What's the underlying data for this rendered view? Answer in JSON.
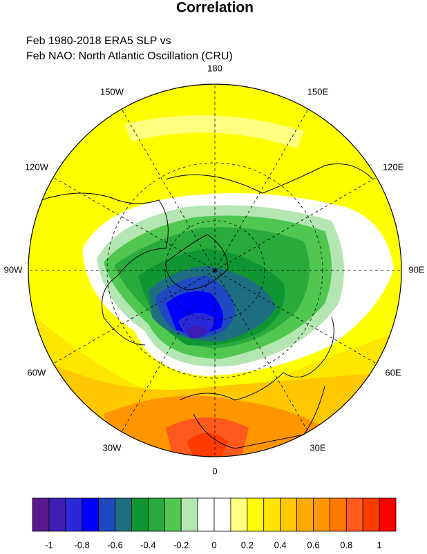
{
  "header": {
    "title": "Correlation",
    "subtitle": [
      "Feb 1980-2018 ERA5 SLP vs",
      "Feb NAO: North Atlantic Oscillation (CRU)"
    ]
  },
  "map": {
    "lon_labels": [
      "180",
      "150E",
      "120E",
      "90E",
      "60E",
      "30E",
      "0",
      "30W",
      "60W",
      "90W",
      "120W",
      "150W"
    ]
  },
  "colorbar": {
    "colors": [
      "#5a1a8c",
      "#3c1eb4",
      "#2a28d8",
      "#0000ff",
      "#2048c0",
      "#1e6e82",
      "#0f9632",
      "#28aa3c",
      "#50c850",
      "#b4e6b4",
      "#ffffff",
      "#ffffff",
      "#ffff80",
      "#ffff00",
      "#ffe600",
      "#ffc800",
      "#ffaa00",
      "#ff9600",
      "#ff7800",
      "#ff5a1e",
      "#ff3c00",
      "#ff0000"
    ],
    "ticks": [
      -1,
      -0.8,
      -0.6,
      -0.4,
      -0.2,
      0,
      0.2,
      0.4,
      0.6,
      0.8,
      1
    ]
  }
}
